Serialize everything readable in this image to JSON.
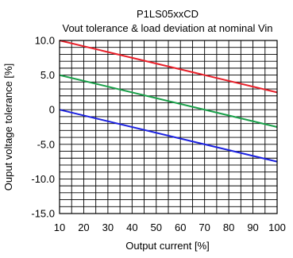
{
  "chart_data": {
    "type": "line",
    "title": "P1LS05xxCD",
    "subtitle": "Vout tolerance & load deviation at nominal Vin",
    "xlabel": "Output current [%]",
    "ylabel": "Ouput voltage tolerance [%]",
    "xlim": [
      10,
      100
    ],
    "ylim": [
      -15,
      10
    ],
    "x_ticks": [
      10,
      20,
      30,
      40,
      50,
      60,
      70,
      80,
      90,
      100
    ],
    "x_tick_labels": [
      "10",
      "20",
      "30",
      "40",
      "50",
      "60",
      "70",
      "80",
      "90",
      "100"
    ],
    "y_ticks": [
      10,
      5,
      0,
      -5,
      -10,
      -15
    ],
    "y_tick_labels": [
      "10.0",
      "5.0",
      "0",
      "-5.0",
      "-10.0",
      "-15.0"
    ],
    "grid": true,
    "grid_x_minor_step": 5,
    "grid_y_minor_step": 1,
    "series": [
      {
        "color": "#e8202a",
        "x": [
          10,
          100
        ],
        "y": [
          10,
          2.5
        ]
      },
      {
        "color": "#1aa04a",
        "x": [
          10,
          100
        ],
        "y": [
          5,
          -2.5
        ]
      },
      {
        "color": "#1c22e0",
        "x": [
          10,
          100
        ],
        "y": [
          0,
          -7.5
        ]
      }
    ]
  }
}
